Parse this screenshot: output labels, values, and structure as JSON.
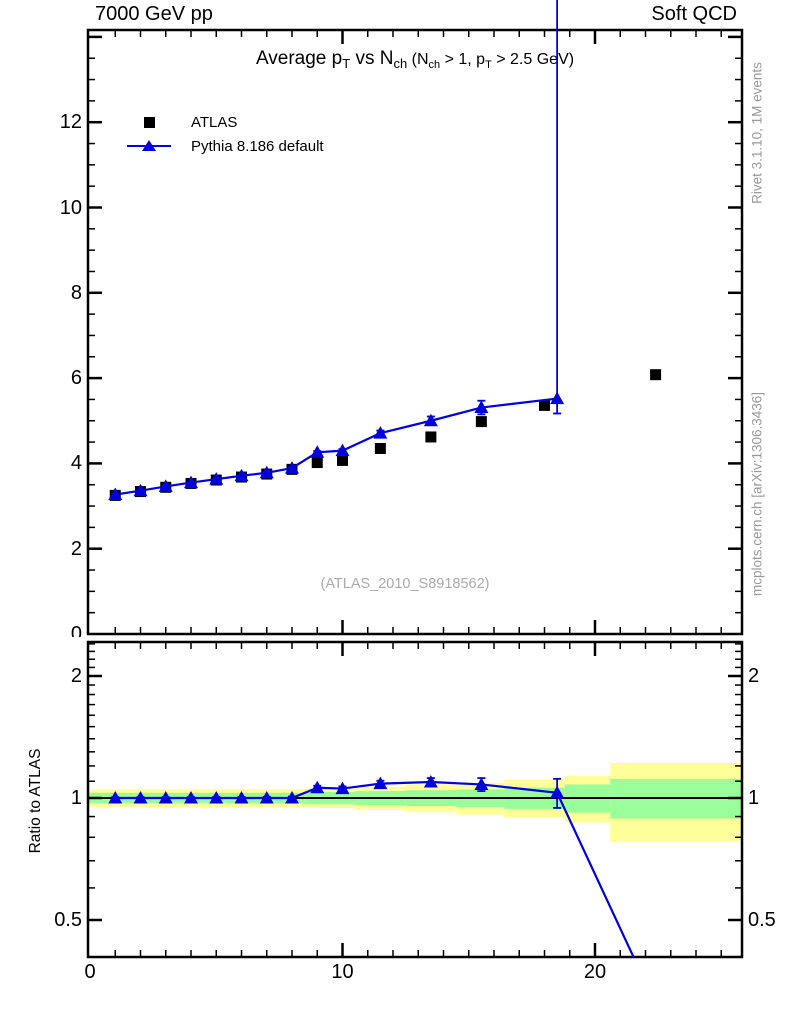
{
  "header": {
    "left": "7000 GeV pp",
    "right": "Soft QCD"
  },
  "title_segments": [
    {
      "text": "Average p"
    },
    {
      "text": "T",
      "sub": true
    },
    {
      "text": " vs N"
    },
    {
      "text": "ch",
      "sub": true
    },
    {
      "text": " (N",
      "small": true
    },
    {
      "text": "ch",
      "sub": true,
      "small": true
    },
    {
      "text": " > 1, p",
      "small": true
    },
    {
      "text": "T",
      "sub": true,
      "small": true
    },
    {
      "text": " > 2.5 GeV)",
      "small": true
    }
  ],
  "legend": {
    "items": [
      {
        "label": "ATLAS",
        "marker": "black-square"
      },
      {
        "label": "Pythia 8.186 default",
        "marker": "blue-line-triangle"
      }
    ]
  },
  "watermark": "(ATLAS_2010_S8918562)",
  "side_notes": {
    "top_right": "Rivet 3.1.10,  1M events",
    "bottom_right": "mcplots.cern.ch [arXiv:1306.3436]"
  },
  "ratio_ylabel": "Ratio to ATLAS",
  "colors": {
    "mc_blue": "#0000dd",
    "data_black": "#000000",
    "band_green": "#99ff99",
    "band_yellow": "#ffff99",
    "gray_text": "#999999",
    "watermark_gray": "#aaaaaa"
  },
  "chart_data": [
    {
      "id": "main",
      "type": "line",
      "title": "Average pT vs Nch (Nch > 1, pT > 2.5 GeV)",
      "xlim": [
        -0.08,
        25.82
      ],
      "ylim": [
        0,
        14.16
      ],
      "x_major_ticks": [
        0,
        10,
        20
      ],
      "x_tick_labels": [
        "0",
        "10",
        "20"
      ],
      "y_major_ticks": [
        2,
        4,
        6,
        8,
        10,
        12,
        14
      ],
      "y_tick_labels": [
        "2",
        "4",
        "6",
        "8",
        "10",
        "12"
      ],
      "y_clipped_zero_label": "0",
      "grid": false,
      "series": [
        {
          "name": "ATLAS",
          "marker": "square",
          "line": false,
          "x": [
            1,
            2,
            3,
            4,
            5,
            6,
            7,
            8,
            9,
            10,
            11.5,
            13.5,
            15.5,
            18,
            22.4
          ],
          "y": [
            3.25,
            3.34,
            3.44,
            3.53,
            3.61,
            3.68,
            3.75,
            3.86,
            4.02,
            4.07,
            4.35,
            4.62,
            4.98,
            5.36,
            6.08
          ]
        },
        {
          "name": "Pythia 8.186 default",
          "marker": "triangle",
          "line": true,
          "x": [
            1,
            2,
            3,
            4,
            5,
            6,
            7,
            8,
            9,
            10,
            11.5,
            13.5,
            15.5,
            18.5
          ],
          "y": [
            3.27,
            3.36,
            3.46,
            3.55,
            3.63,
            3.71,
            3.78,
            3.89,
            4.26,
            4.3,
            4.71,
            5.0,
            5.31,
            5.52
          ],
          "err_lo": [
            0.012,
            0.012,
            0.012,
            0.013,
            0.014,
            0.015,
            0.016,
            0.02,
            0.03,
            0.035,
            0.06,
            0.1,
            0.16,
            0.35
          ],
          "err_hi": [
            0.012,
            0.012,
            0.012,
            0.013,
            0.014,
            0.015,
            0.016,
            0.02,
            0.03,
            0.035,
            0.06,
            0.1,
            0.16,
            15
          ]
        }
      ]
    },
    {
      "id": "ratio",
      "type": "line",
      "ylabel": "Ratio to ATLAS",
      "yscale": "log",
      "xlim": [
        -0.08,
        25.82
      ],
      "ylim": [
        0.405,
        2.425
      ],
      "x_major_ticks": [
        0,
        10,
        20
      ],
      "x_tick_labels": [
        "0",
        "10",
        "20"
      ],
      "y_major_ticks": [
        0.5,
        1,
        2
      ],
      "y_tick_labels": [
        "0.5",
        "1",
        "2"
      ],
      "baseline": 1,
      "series": [
        {
          "name": "Pythia 8.186 default / ATLAS",
          "marker": "triangle",
          "line": true,
          "x": [
            1,
            2,
            3,
            4,
            5,
            6,
            7,
            8,
            9,
            10,
            11.5,
            13.5,
            15.5,
            18.5,
            22.5
          ],
          "y": [
            1.0,
            1.0,
            1.0,
            1.0,
            1.0,
            1.0,
            1.0,
            1.0,
            1.06,
            1.055,
            1.085,
            1.095,
            1.08,
            1.03,
            0.3
          ],
          "err": [
            0.005,
            0.005,
            0.005,
            0.005,
            0.006,
            0.006,
            0.007,
            0.008,
            0.012,
            0.013,
            0.018,
            0.025,
            0.04,
            0.085,
            0
          ]
        }
      ],
      "bands": {
        "segments": [
          {
            "x1": -0.08,
            "x2": 8.5,
            "green": [
              0.97,
              1.03
            ],
            "yellow": [
              0.95,
              1.05
            ]
          },
          {
            "x1": 8.5,
            "x2": 10.5,
            "green": [
              0.965,
              1.035
            ],
            "yellow": [
              0.945,
              1.055
            ]
          },
          {
            "x1": 10.5,
            "x2": 12.5,
            "green": [
              0.96,
              1.04
            ],
            "yellow": [
              0.935,
              1.065
            ]
          },
          {
            "x1": 12.5,
            "x2": 14.5,
            "green": [
              0.955,
              1.045
            ],
            "yellow": [
              0.925,
              1.075
            ]
          },
          {
            "x1": 14.5,
            "x2": 16.4,
            "green": [
              0.95,
              1.05
            ],
            "yellow": [
              0.91,
              1.09
            ]
          },
          {
            "x1": 16.4,
            "x2": 18.8,
            "green": [
              0.94,
              1.06
            ],
            "yellow": [
              0.895,
              1.11
            ]
          },
          {
            "x1": 18.8,
            "x2": 20.6,
            "green": [
              0.92,
              1.08
            ],
            "yellow": [
              0.87,
              1.135
            ]
          },
          {
            "x1": 20.6,
            "x2": 25.82,
            "green": [
              0.89,
              1.115
            ],
            "yellow": [
              0.78,
              1.22
            ]
          }
        ]
      }
    }
  ]
}
